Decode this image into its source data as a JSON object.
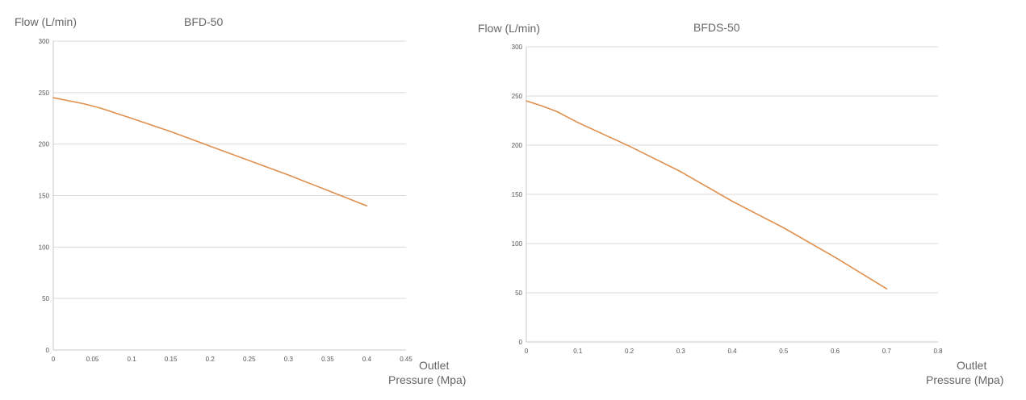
{
  "colors": {
    "line": "#e0904e",
    "grid": "#d9d9d9",
    "text": "#666666"
  },
  "chart_data": [
    {
      "type": "line",
      "title": "BFD-50",
      "ylabel": "Flow  (L/min)",
      "xlabel_line1": "Outlet",
      "xlabel_line2": "Pressure  (Mpa)",
      "x_ticks": [
        "0",
        "0.05",
        "0.1",
        "0.15",
        "0.2",
        "0.25",
        "0.3",
        "0.35",
        "0.4",
        "0.45"
      ],
      "y_ticks": [
        "0",
        "50",
        "100",
        "150",
        "200",
        "250",
        "300"
      ],
      "xlim": [
        0,
        0.45
      ],
      "ylim": [
        0,
        300
      ],
      "grid": true,
      "series": [
        {
          "name": "BFD-50",
          "x": [
            0,
            0.02,
            0.04,
            0.06,
            0.08,
            0.1,
            0.15,
            0.2,
            0.25,
            0.3,
            0.35,
            0.4
          ],
          "y": [
            245,
            242,
            239,
            235,
            230,
            225,
            212,
            198,
            184,
            170,
            155,
            140
          ]
        }
      ]
    },
    {
      "type": "line",
      "title": "BFDS-50",
      "ylabel": "Flow  (L/min)",
      "xlabel_line1": "Outlet",
      "xlabel_line2": "Pressure  (Mpa)",
      "x_ticks": [
        "0",
        "0.1",
        "0.2",
        "0.3",
        "0.4",
        "0.5",
        "0.6",
        "0.7",
        "0.8"
      ],
      "y_ticks": [
        "0",
        "50",
        "100",
        "150",
        "200",
        "250",
        "300"
      ],
      "xlim": [
        0,
        0.8
      ],
      "ylim": [
        0,
        300
      ],
      "grid": true,
      "series": [
        {
          "name": "BFDS-50",
          "x": [
            0,
            0.03,
            0.06,
            0.1,
            0.2,
            0.3,
            0.4,
            0.5,
            0.6,
            0.7
          ],
          "y": [
            245,
            240,
            234,
            223,
            199,
            173,
            143,
            116,
            86,
            54
          ]
        }
      ]
    }
  ]
}
